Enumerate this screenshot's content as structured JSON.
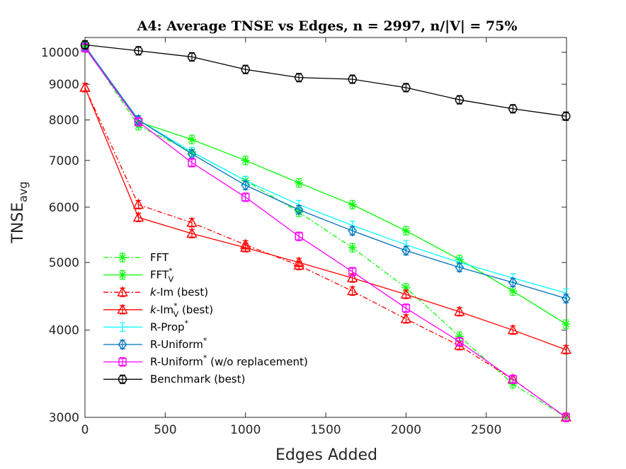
{
  "chart_data": {
    "type": "line",
    "title": "A4: Average TNSE vs Edges, n = 2997, n/|V| = 75%",
    "xlabel": "Edges Added",
    "ylabel": {
      "main": "TNSE",
      "sub": "avg"
    },
    "xlim": [
      0,
      3000
    ],
    "ylim": [
      3000,
      10500
    ],
    "yscale": "log",
    "xticks": [
      0,
      500,
      1000,
      1500,
      2000,
      2500
    ],
    "yticks": [
      3000,
      4000,
      5000,
      6000,
      7000,
      8000,
      9000,
      10000
    ],
    "legend_position": "bottom-left",
    "grid": false,
    "series": [
      {
        "name": "FFT",
        "name_sup": "",
        "name_sub": "",
        "name_suffix": "",
        "italic_prefix": "",
        "color": "#00ff00",
        "dash": "dashdot",
        "marker": "asterisk",
        "x": [
          0,
          333,
          666,
          1000,
          1333,
          1666,
          2000,
          2333,
          2666,
          2997
        ],
        "y": [
          10200,
          7850,
          7200,
          6550,
          5900,
          5250,
          4600,
          3920,
          3350,
          3000
        ]
      },
      {
        "name": "FFT",
        "name_sup": "*",
        "name_sub": "V",
        "name_suffix": "",
        "italic_prefix": "",
        "color": "#00ff00",
        "dash": "solid",
        "marker": "asterisk",
        "x": [
          0,
          333,
          666,
          1000,
          1333,
          1666,
          2000,
          2333,
          2666,
          2997
        ],
        "y": [
          10200,
          7950,
          7500,
          7000,
          6500,
          6050,
          5550,
          5050,
          4550,
          4080
        ]
      },
      {
        "name": "-Im (best)",
        "name_sup": "",
        "name_sub": "",
        "name_suffix": "",
        "italic_prefix": "k",
        "color": "#ff0000",
        "dash": "dashdot",
        "marker": "triangle",
        "x": [
          0,
          333,
          666,
          1000,
          1333,
          1666,
          2000,
          2333,
          2666,
          2997
        ],
        "y": [
          8900,
          6050,
          5700,
          5300,
          4950,
          4550,
          4150,
          3800,
          3400,
          3000
        ]
      },
      {
        "name": "-Im",
        "name_sup": "*",
        "name_sub": "V",
        "name_suffix": " (best)",
        "italic_prefix": "k",
        "color": "#ff0000",
        "dash": "solid",
        "marker": "triangle",
        "x": [
          0,
          333,
          666,
          1000,
          1333,
          1666,
          2000,
          2333,
          2666,
          2997
        ],
        "y": [
          8900,
          5800,
          5500,
          5250,
          5000,
          4750,
          4500,
          4250,
          4000,
          3750
        ]
      },
      {
        "name": "R-Prop",
        "name_sup": "*",
        "name_sub": "",
        "name_suffix": "",
        "italic_prefix": "",
        "color": "#00ffff",
        "dash": "solid",
        "marker": "none",
        "x": [
          0,
          333,
          666,
          1000,
          1333,
          1666,
          2000,
          2333,
          2666,
          2997
        ],
        "y": [
          10200,
          8000,
          7200,
          6550,
          6050,
          5650,
          5300,
          5000,
          4750,
          4520
        ]
      },
      {
        "name": "R-Uniform",
        "name_sup": "*",
        "name_sub": "",
        "name_suffix": "",
        "italic_prefix": "",
        "color": "#0072bd",
        "dash": "solid",
        "marker": "diamond",
        "x": [
          0,
          333,
          666,
          1000,
          1333,
          1666,
          2000,
          2333,
          2666,
          2997
        ],
        "y": [
          10200,
          8000,
          7150,
          6450,
          5950,
          5550,
          5200,
          4920,
          4680,
          4440
        ]
      },
      {
        "name": "R-Uniform",
        "name_sup": "*",
        "name_sub": "",
        "name_suffix": " (w/o replacement)",
        "italic_prefix": "",
        "color": "#ff00ff",
        "dash": "solid",
        "marker": "square",
        "x": [
          0,
          333,
          666,
          1000,
          1333,
          1666,
          2000,
          2333,
          2666,
          2997
        ],
        "y": [
          10150,
          7950,
          6950,
          6200,
          5450,
          4850,
          4300,
          3850,
          3400,
          3000
        ]
      },
      {
        "name": "Benchmark (best)",
        "name_sup": "",
        "name_sub": "",
        "name_suffix": "",
        "italic_prefix": "",
        "color": "#000000",
        "dash": "solid",
        "marker": "circle",
        "x": [
          0,
          333,
          666,
          1000,
          1333,
          1666,
          2000,
          2333,
          2666,
          2997
        ],
        "y": [
          10250,
          10050,
          9850,
          9450,
          9200,
          9150,
          8900,
          8550,
          8300,
          8100
        ]
      }
    ]
  }
}
